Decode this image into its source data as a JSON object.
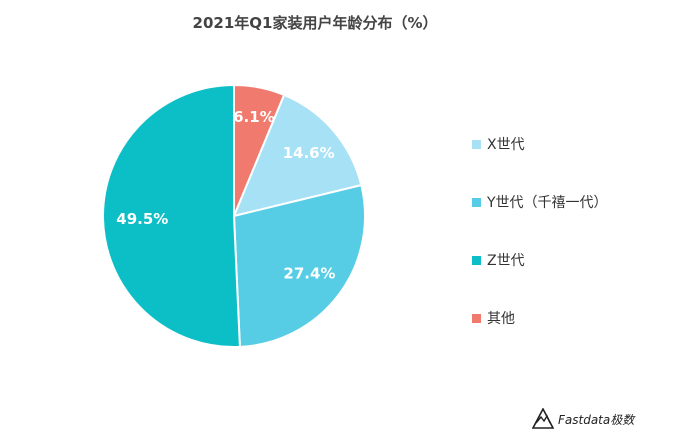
{
  "chart_data": {
    "type": "pie",
    "title": "2021年Q1家装用户年龄分布（%）",
    "categories": [
      "X世代",
      "Y世代（千禧一代）",
      "Z世代",
      "其他"
    ],
    "values": [
      14.6,
      27.4,
      49.5,
      6.1
    ],
    "labels": [
      "14.6%",
      "27.4%",
      "49.5%",
      "6.1%"
    ],
    "colors": [
      "#a6e1f5",
      "#56cde4",
      "#0cbfc7",
      "#f17a6f"
    ],
    "legend": "right"
  },
  "brand": {
    "text": "Fastdata极数"
  }
}
